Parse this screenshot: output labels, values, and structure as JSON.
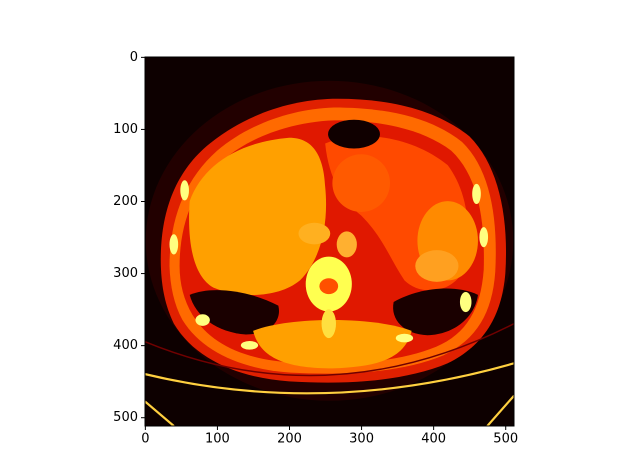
{
  "chart_data": {
    "type": "image",
    "colormap": "hot",
    "xlim": [
      -0.5,
      511.5
    ],
    "ylim": [
      511.5,
      -0.5
    ],
    "xticks": [
      0,
      100,
      200,
      300,
      400,
      500
    ],
    "yticks": [
      0,
      100,
      200,
      300,
      400,
      500
    ]
  }
}
